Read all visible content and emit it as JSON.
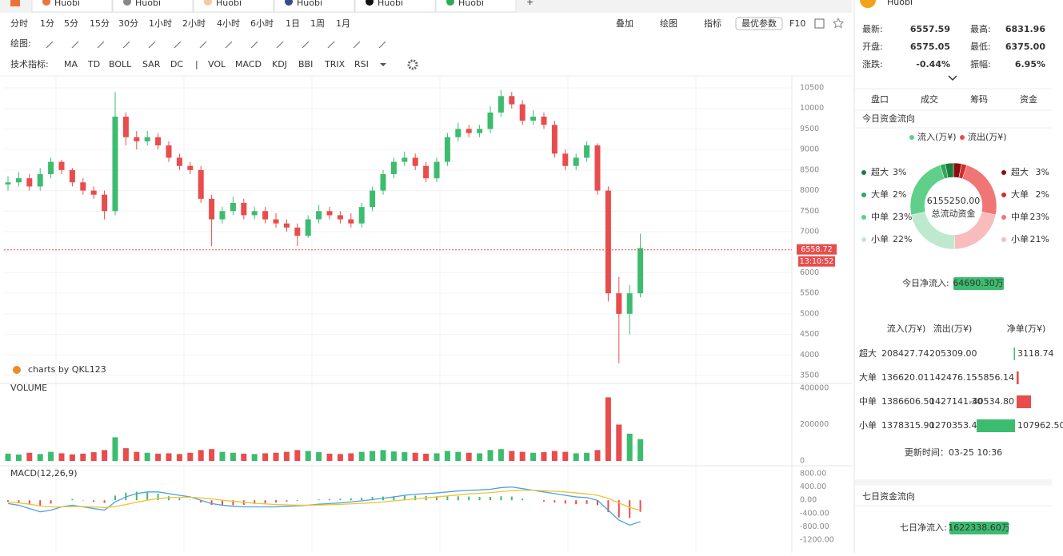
{
  "top_tabs": [
    "Huobi",
    "Huobi",
    "Huobi",
    "Huobi",
    "Huobi",
    "Huobi"
  ],
  "toolbar": {
    "periods": [
      "分时",
      "1分",
      "5分",
      "15分",
      "30分",
      "1小时",
      "2小时",
      "4小时",
      "6小时",
      "1日",
      "1周",
      "1月"
    ],
    "active_period": 9,
    "tools": [
      "叠加",
      "绘图",
      "指标"
    ],
    "param_button": "最优参数",
    "f10": "F10",
    "draw_label": "绘图:",
    "indicator_label": "技术指标:",
    "separator": "|",
    "indicators": [
      "MA",
      "TD",
      "BOLL",
      "SAR",
      "DC",
      "VOL",
      "MACD",
      "KDJ",
      "BBI",
      "TRIX",
      "RSI"
    ],
    "active_indicators": [
      5,
      6
    ]
  },
  "chart_data": {
    "type": "candlestick",
    "watermark": "charts by QKL123",
    "up_color": "#3cbc6f",
    "down_color": "#e84c4c",
    "grid": true,
    "candles": {
      "open": [
        8150,
        8200,
        8300,
        8100,
        8400,
        8700,
        8500,
        8200,
        8000,
        7900,
        7500,
        9800,
        9300,
        9200,
        9300,
        9100,
        8800,
        8600,
        8500,
        7800,
        7300,
        7500,
        7700,
        7400,
        7500,
        7300,
        7200,
        7100,
        6900,
        7300,
        7500,
        7400,
        7300,
        7200,
        7600,
        8000,
        8400,
        8700,
        8800,
        8600,
        8300,
        8700,
        9300,
        9500,
        9400,
        9500,
        9900,
        10300,
        10100,
        9700,
        9800,
        9600,
        8900,
        8600,
        8800,
        9100,
        8000,
        5500,
        5000,
        5500
      ],
      "high": [
        8350,
        8450,
        8400,
        8550,
        8800,
        8750,
        8550,
        8300,
        8100,
        8000,
        10400,
        9900,
        9450,
        9450,
        9400,
        9200,
        8900,
        8700,
        8600,
        7900,
        7600,
        7850,
        7800,
        7600,
        7600,
        7450,
        7300,
        7200,
        7400,
        7650,
        7600,
        7500,
        7450,
        7700,
        8100,
        8500,
        8800,
        8950,
        8900,
        8700,
        8800,
        9400,
        9650,
        9600,
        9600,
        10050,
        10450,
        10400,
        10200,
        9950,
        9900,
        9700,
        9000,
        8900,
        9200,
        9150,
        8100,
        5900,
        5700,
        6950
      ],
      "low": [
        8000,
        8100,
        8000,
        8000,
        8300,
        8400,
        8100,
        7900,
        7800,
        7300,
        7400,
        9100,
        9000,
        9100,
        9000,
        8700,
        8500,
        8400,
        7700,
        6650,
        7200,
        7400,
        7300,
        7300,
        7200,
        7100,
        7000,
        6650,
        6850,
        7200,
        7300,
        7200,
        7100,
        7100,
        7500,
        7900,
        8300,
        8600,
        8500,
        8200,
        8200,
        8600,
        9200,
        9300,
        9300,
        9400,
        9800,
        10000,
        9600,
        9600,
        9500,
        8800,
        8500,
        8500,
        8700,
        7900,
        5300,
        3800,
        4500,
        5400
      ],
      "close": [
        8200,
        8300,
        8100,
        8400,
        8700,
        8500,
        8200,
        8000,
        7900,
        7500,
        9800,
        9300,
        9200,
        9300,
        9100,
        8800,
        8600,
        8500,
        7800,
        7300,
        7500,
        7700,
        7400,
        7500,
        7300,
        7200,
        7100,
        6900,
        7300,
        7500,
        7400,
        7300,
        7200,
        7600,
        8000,
        8400,
        8700,
        8800,
        8600,
        8300,
        8700,
        9300,
        9500,
        9400,
        9500,
        9900,
        10300,
        10100,
        9700,
        9800,
        9600,
        8900,
        8600,
        8800,
        9100,
        8000,
        5500,
        5000,
        5500,
        6600
      ]
    },
    "ylim": [
      3500,
      10500
    ],
    "yticks": [
      3500,
      4000,
      4500,
      5000,
      5500,
      6000,
      6500,
      7000,
      7500,
      8000,
      8500,
      9000,
      9500,
      10000,
      10500
    ],
    "current_price": 6558.72,
    "current_time": "13:10:52",
    "volume": {
      "label": "VOLUME",
      "ylim": [
        0,
        400000
      ],
      "yticks": [
        0,
        200000,
        400000
      ],
      "values": [
        40000,
        35000,
        45000,
        38000,
        50000,
        42000,
        36000,
        40000,
        48000,
        60000,
        130000,
        70000,
        50000,
        45000,
        40000,
        42000,
        38000,
        45000,
        60000,
        65000,
        50000,
        45000,
        40000,
        38000,
        42000,
        45000,
        50000,
        60000,
        55000,
        48000,
        40000,
        38000,
        42000,
        50000,
        55000,
        60000,
        52000,
        48000,
        45000,
        40000,
        42000,
        55000,
        50000,
        45000,
        42000,
        60000,
        65000,
        55000,
        50000,
        45000,
        48000,
        55000,
        50000,
        42000,
        45000,
        60000,
        350000,
        200000,
        150000,
        120000
      ]
    },
    "macd": {
      "label": "MACD(12,26,9)",
      "ylim": [
        -1200,
        800
      ],
      "yticks": [
        {
          "value": 800,
          "label": "800.00"
        },
        {
          "value": 400,
          "label": "400.00"
        },
        {
          "value": 0,
          "label": "0.00"
        },
        {
          "value": -400,
          "label": "-400.00"
        },
        {
          "value": -800,
          "label": "-800.00"
        },
        {
          "value": -1200,
          "label": "-1200.00"
        }
      ],
      "dif_color": "#4aa3df",
      "dea_color": "#f2c230",
      "dif": [
        -100,
        -150,
        -250,
        -350,
        -300,
        -200,
        -150,
        -200,
        -250,
        -300,
        -50,
        100,
        200,
        250,
        250,
        200,
        150,
        100,
        0,
        -100,
        -150,
        -180,
        -200,
        -200,
        -200,
        -200,
        -180,
        -170,
        -150,
        -120,
        -100,
        -80,
        -50,
        -20,
        20,
        60,
        100,
        150,
        180,
        200,
        220,
        250,
        280,
        300,
        310,
        330,
        380,
        400,
        350,
        300,
        250,
        200,
        150,
        100,
        80,
        0,
        -300,
        -600,
        -750,
        -650
      ],
      "dea": [
        -50,
        -80,
        -120,
        -170,
        -200,
        -200,
        -190,
        -190,
        -200,
        -220,
        -190,
        -130,
        -60,
        0,
        50,
        80,
        90,
        90,
        70,
        40,
        0,
        -30,
        -60,
        -90,
        -110,
        -130,
        -140,
        -150,
        -150,
        -145,
        -135,
        -125,
        -110,
        -95,
        -75,
        -50,
        -20,
        10,
        40,
        70,
        100,
        130,
        160,
        190,
        210,
        230,
        260,
        290,
        300,
        300,
        290,
        270,
        250,
        220,
        190,
        150,
        60,
        -80,
        -220,
        -300
      ],
      "hist": [
        -50,
        -70,
        -130,
        -180,
        -100,
        0,
        40,
        -10,
        -50,
        -80,
        140,
        230,
        260,
        250,
        200,
        120,
        60,
        10,
        -70,
        -140,
        -150,
        -150,
        -140,
        -110,
        -90,
        -70,
        -40,
        -20,
        0,
        25,
        35,
        45,
        60,
        75,
        95,
        110,
        120,
        140,
        140,
        130,
        120,
        120,
        120,
        110,
        100,
        100,
        120,
        110,
        50,
        0,
        -40,
        -70,
        -100,
        -120,
        -110,
        -150,
        -360,
        -520,
        -530,
        -350
      ]
    }
  },
  "panel": {
    "exchange": "Huobi",
    "stats": [
      {
        "label": "最新:",
        "value": "6557.59",
        "color": "#222"
      },
      {
        "label": "最高:",
        "value": "6831.96",
        "color": "#2fa85a"
      },
      {
        "label": "开盘:",
        "value": "6575.05",
        "color": "#222"
      },
      {
        "label": "最低:",
        "value": "6375.00",
        "color": "#e84c4c"
      },
      {
        "label": "涨跌:",
        "value": "-0.44%",
        "color": "#e84c4c"
      },
      {
        "label": "振幅:",
        "value": "6.95%",
        "color": "#e84c4c"
      }
    ],
    "tabs": [
      "盘口",
      "成交",
      "筹码",
      "资金"
    ],
    "active_tab": 3,
    "today_title": "今日资金流向",
    "legend_in": "流入(万¥)",
    "legend_out": "流出(万¥)",
    "donut": {
      "names": [
        "超大",
        "大单",
        "中单",
        "小单"
      ],
      "in_values": [
        3,
        2,
        23,
        22
      ],
      "in_labels": [
        "3%",
        "2%",
        "23%",
        "22%"
      ],
      "out_values": [
        3,
        2,
        23,
        21
      ],
      "out_labels": [
        "3%",
        "2%",
        "23%",
        "21%"
      ],
      "in_colors": [
        "#1a7f3c",
        "#2fa85a",
        "#5fcf8a",
        "#bfe9cf"
      ],
      "out_colors": [
        "#8b0f0f",
        "#d92b2b",
        "#f07575",
        "#f8bcbc"
      ],
      "center_value": "6155250.00",
      "center_label": "总流动资金"
    },
    "net_label": "今日净流入:",
    "net_value": "64690.30万",
    "table": {
      "headers": [
        "流入(万¥)",
        "流出(万¥)",
        "净单(万¥)"
      ],
      "rows": [
        [
          "超大",
          "208427.74",
          "205309.00"
        ],
        [
          "大单",
          "136620.01",
          "142476.15"
        ],
        [
          "中单",
          "1386606.50",
          "1427141.30"
        ],
        [
          "小单",
          "1378315.90",
          "1270353.40"
        ]
      ],
      "net_values": [
        3118.74,
        -5856.14,
        -40534.8,
        107962.5
      ],
      "net_labels": [
        "3118.74",
        "-5856.14",
        "-40534.80",
        "107962.50"
      ]
    },
    "updated": "更新时间：03-25 10:36",
    "week_title": "七日资金流向",
    "week_net_label": "七日净流入:",
    "week_net_value": "1622338.60万"
  }
}
